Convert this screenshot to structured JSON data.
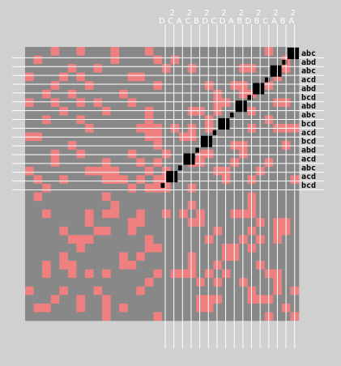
{
  "row_labels": [
    "abc",
    "abd",
    "abc",
    "acd",
    "abd",
    "bcd",
    "abd",
    "abc",
    "bcd",
    "acd",
    "bcd",
    "abd",
    "acd",
    "abc",
    "acd",
    "bcd"
  ],
  "col_labels": [
    {
      "letter": "D"
    },
    {
      "mark": "2",
      "letter": "C"
    },
    {
      "letter": "A"
    },
    {
      "mark": "2",
      "letter": "C"
    },
    {
      "letter": "B"
    },
    {
      "mark": "2",
      "letter": "D"
    },
    {
      "letter": "C"
    },
    {
      "mark": "2",
      "letter": "D"
    },
    {
      "letter": "A"
    },
    {
      "mark": "2",
      "letter": "B"
    },
    {
      "letter": "D"
    },
    {
      "mark": "2",
      "letter": "B"
    },
    {
      "letter": "C"
    },
    {
      "mark": "2",
      "letter": "A"
    },
    {
      "letter": "B"
    },
    {
      "mark": "2",
      "letter": "A"
    }
  ]
}
